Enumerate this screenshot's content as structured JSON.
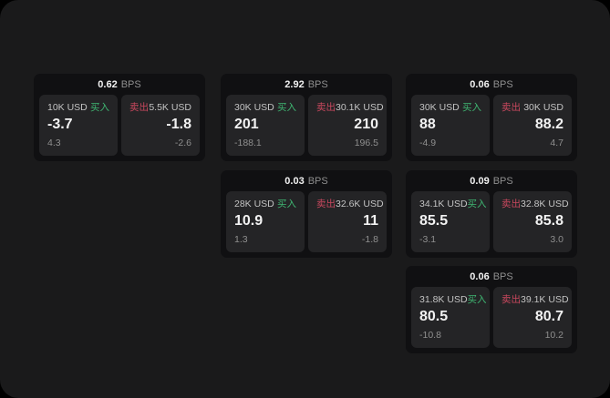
{
  "colors": {
    "page_bg": "#000000",
    "window_bg": "#1a1a1b",
    "card_bg": "#101012",
    "panel_bg": "#242426",
    "text_primary": "#f2f2f2",
    "text_secondary": "#8f8f8f",
    "text_label": "#c3c3c3",
    "buy_green": "#3fb672",
    "sell_red": "#c9485e"
  },
  "labels": {
    "bps_unit": "BPS",
    "buy": "买入",
    "sell": "卖出"
  },
  "cards": [
    {
      "bps": "0.62",
      "buy": {
        "size": "10K USD",
        "value": "-3.7",
        "delta": "4.3"
      },
      "sell": {
        "size": "5.5K USD",
        "value": "-1.8",
        "delta": "-2.6"
      }
    },
    {
      "bps": "2.92",
      "buy": {
        "size": "30K USD",
        "value": "201",
        "delta": "-188.1"
      },
      "sell": {
        "size": "30.1K USD",
        "value": "210",
        "delta": "196.5"
      }
    },
    {
      "bps": "0.06",
      "buy": {
        "size": "30K USD",
        "value": "88",
        "delta": "-4.9"
      },
      "sell": {
        "size": "30K USD",
        "value": "88.2",
        "delta": "4.7"
      }
    },
    {
      "bps": "0.03",
      "buy": {
        "size": "28K USD",
        "value": "10.9",
        "delta": "1.3"
      },
      "sell": {
        "size": "32.6K USD",
        "value": "11",
        "delta": "-1.8"
      }
    },
    {
      "bps": "0.09",
      "buy": {
        "size": "34.1K USD",
        "value": "85.5",
        "delta": "-3.1"
      },
      "sell": {
        "size": "32.8K USD",
        "value": "85.8",
        "delta": "3.0"
      }
    },
    {
      "bps": "0.06",
      "buy": {
        "size": "31.8K USD",
        "value": "80.5",
        "delta": "-10.8"
      },
      "sell": {
        "size": "39.1K USD",
        "value": "80.7",
        "delta": "10.2"
      }
    }
  ]
}
